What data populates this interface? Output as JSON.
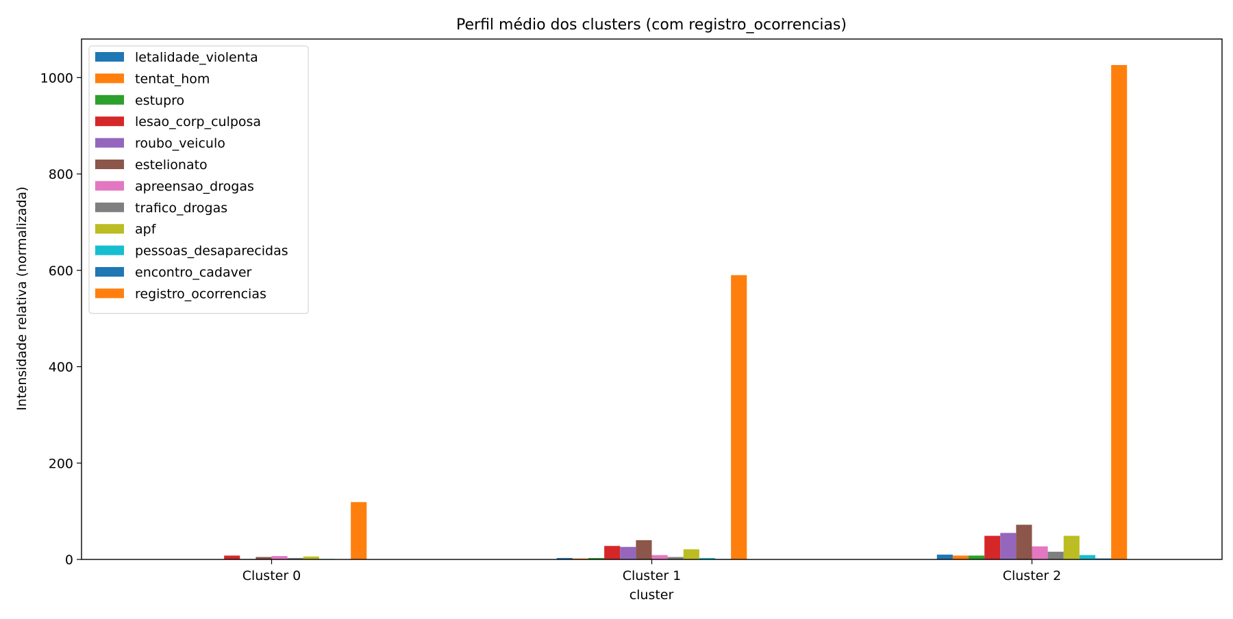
{
  "chart_data": {
    "type": "bar",
    "title": "Perfil médio dos clusters (com registro_ocorrencias)",
    "xlabel": "cluster",
    "ylabel": "Intensidade relativa (normalizada)",
    "categories": [
      "Cluster 0",
      "Cluster 1",
      "Cluster 2"
    ],
    "ylim": [
      0,
      1080
    ],
    "yticks": [
      0,
      200,
      400,
      600,
      800,
      1000
    ],
    "grid": false,
    "legend_position": "top-left",
    "series": [
      {
        "name": "letalidade_violenta",
        "color": "#1f77b4",
        "values": [
          0.5,
          3,
          10
        ]
      },
      {
        "name": "tentat_hom",
        "color": "#ff7f0e",
        "values": [
          0.5,
          2,
          8
        ]
      },
      {
        "name": "estupro",
        "color": "#2ca02c",
        "values": [
          0.5,
          3,
          8
        ]
      },
      {
        "name": "lesao_corp_culposa",
        "color": "#d62728",
        "values": [
          8,
          28,
          49
        ]
      },
      {
        "name": "roubo_veiculo",
        "color": "#9467bd",
        "values": [
          1,
          26,
          55
        ]
      },
      {
        "name": "estelionato",
        "color": "#8c564b",
        "values": [
          5,
          40,
          72
        ]
      },
      {
        "name": "apreensao_drogas",
        "color": "#e377c2",
        "values": [
          7,
          9,
          27
        ]
      },
      {
        "name": "trafico_drogas",
        "color": "#7f7f7f",
        "values": [
          3,
          5,
          16
        ]
      },
      {
        "name": "apf",
        "color": "#bcbd22",
        "values": [
          6,
          21,
          49
        ]
      },
      {
        "name": "pessoas_desaparecidas",
        "color": "#17becf",
        "values": [
          1,
          3,
          9
        ]
      },
      {
        "name": "encontro_cadaver",
        "color": "#1f77b4",
        "values": [
          0.3,
          1,
          2
        ]
      },
      {
        "name": "registro_ocorrencias",
        "color": "#ff7f0e",
        "values": [
          119,
          590,
          1026
        ]
      }
    ]
  }
}
